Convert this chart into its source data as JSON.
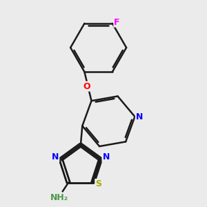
{
  "bg_color": "#ebebeb",
  "bond_color": "#1a1a1a",
  "bond_width": 1.8,
  "atom_colors": {
    "N": "#0000FF",
    "O": "#FF0000",
    "S": "#AAAA00",
    "F": "#FF00FF",
    "C": "#1a1a1a",
    "NH2": "#4a9a4a"
  },
  "font_size": 9,
  "figsize": [
    3.0,
    3.0
  ],
  "dpi": 100
}
